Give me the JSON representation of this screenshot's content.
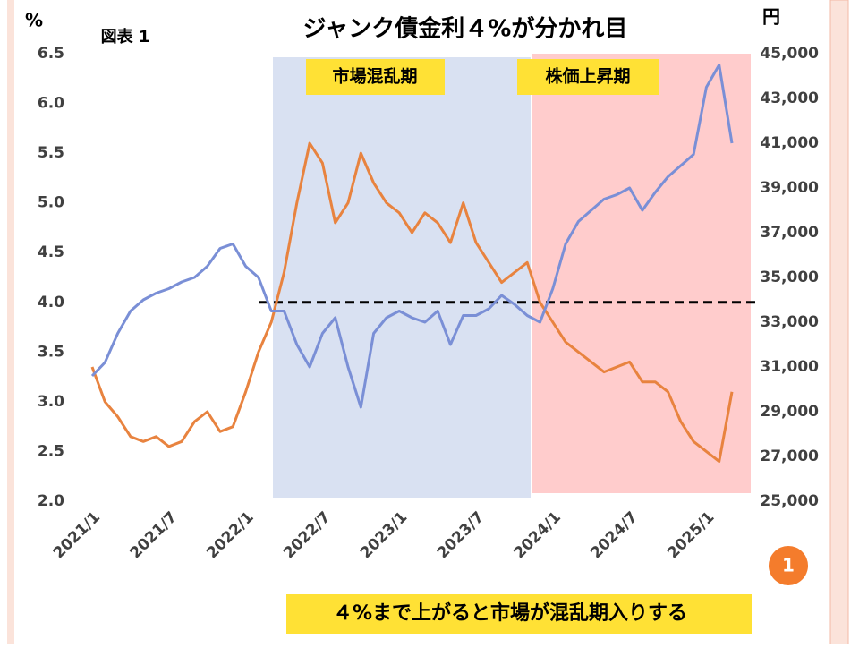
{
  "chart_data": {
    "type": "line",
    "title": "ジャンク債金利４%が分かれ目",
    "figure_label": "図表 1",
    "y_label": "%",
    "y2_label": "円",
    "annotations": [
      "市場混乱期",
      "株価上昇期"
    ],
    "caption": "４%まで上がると市場が混乱期入りする",
    "page_number": "1",
    "x": [
      "2021/1",
      "2021/2",
      "2021/3",
      "2021/4",
      "2021/5",
      "2021/6",
      "2021/7",
      "2021/8",
      "2021/9",
      "2021/10",
      "2021/11",
      "2021/12",
      "2022/1",
      "2022/2",
      "2022/3",
      "2022/4",
      "2022/5",
      "2022/6",
      "2022/7",
      "2022/8",
      "2022/9",
      "2022/10",
      "2022/11",
      "2022/12",
      "2023/1",
      "2023/2",
      "2023/3",
      "2023/4",
      "2023/5",
      "2023/6",
      "2023/7",
      "2023/8",
      "2023/9",
      "2023/10",
      "2023/11",
      "2023/12",
      "2024/1",
      "2024/2",
      "2024/3",
      "2024/4",
      "2024/5",
      "2024/6",
      "2024/7",
      "2024/8",
      "2024/9",
      "2024/10",
      "2024/11",
      "2024/12",
      "2025/1",
      "2025/2",
      "2025/3"
    ],
    "xticks": [
      "2021/1",
      "2021/7",
      "2022/1",
      "2022/7",
      "2023/1",
      "2023/7",
      "2024/1",
      "2024/7",
      "2025/1"
    ],
    "series": [
      {
        "color": "#e8833f",
        "values": [
          3.35,
          3.0,
          2.85,
          2.65,
          2.6,
          2.65,
          2.55,
          2.6,
          2.8,
          2.9,
          2.7,
          2.75,
          3.1,
          3.5,
          3.8,
          4.3,
          5.0,
          5.6,
          5.4,
          4.8,
          5.0,
          5.5,
          5.2,
          5.0,
          4.9,
          4.7,
          4.9,
          4.8,
          4.6,
          5.0,
          4.6,
          4.4,
          4.2,
          4.3,
          4.4,
          4.0,
          3.8,
          3.6,
          3.5,
          3.4,
          3.3,
          3.35,
          3.4,
          3.2,
          3.2,
          3.1,
          2.8,
          2.6,
          2.5,
          2.4,
          3.1
        ]
      },
      {
        "color": "#7a8fd6",
        "axis": "y2",
        "values": [
          30600,
          31200,
          32500,
          33500,
          34000,
          34300,
          34500,
          34800,
          35000,
          35500,
          36300,
          36500,
          35500,
          35000,
          33500,
          33500,
          32000,
          31000,
          32500,
          33200,
          31000,
          29200,
          32500,
          33200,
          33500,
          33200,
          33000,
          33500,
          32000,
          33300,
          33300,
          33600,
          34200,
          33800,
          33300,
          33000,
          34500,
          36500,
          37500,
          38000,
          38500,
          38700,
          39000,
          38000,
          38800,
          39500,
          40000,
          40500,
          43500,
          44500,
          41000
        ]
      }
    ],
    "ylim": [
      2,
      6.5
    ],
    "yticks": [
      {
        "value": 2,
        "label": "2.0"
      },
      2.5,
      {
        "value": 3,
        "label": "3.0"
      },
      3.5,
      {
        "value": 4,
        "label": "4.0"
      },
      4.5,
      {
        "value": 5,
        "label": "5.0"
      },
      5.5,
      {
        "value": 6,
        "label": "6.0"
      },
      6.5
    ],
    "y2lim": [
      25000,
      45000
    ],
    "y2ticks": [
      {
        "value": 25000,
        "label": "25,000"
      },
      {
        "value": 27000,
        "label": "27,000"
      },
      {
        "value": 29000,
        "label": "29,000"
      },
      {
        "value": 31000,
        "label": "31,000"
      },
      {
        "value": 33000,
        "label": "33,000"
      },
      {
        "value": 35000,
        "label": "35,000"
      },
      {
        "value": 37000,
        "label": "37,000"
      },
      {
        "value": 39000,
        "label": "39,000"
      },
      {
        "value": 41000,
        "label": "41,000"
      },
      {
        "value": 43000,
        "label": "43,000"
      },
      {
        "value": 45000,
        "label": "45,000"
      }
    ]
  }
}
